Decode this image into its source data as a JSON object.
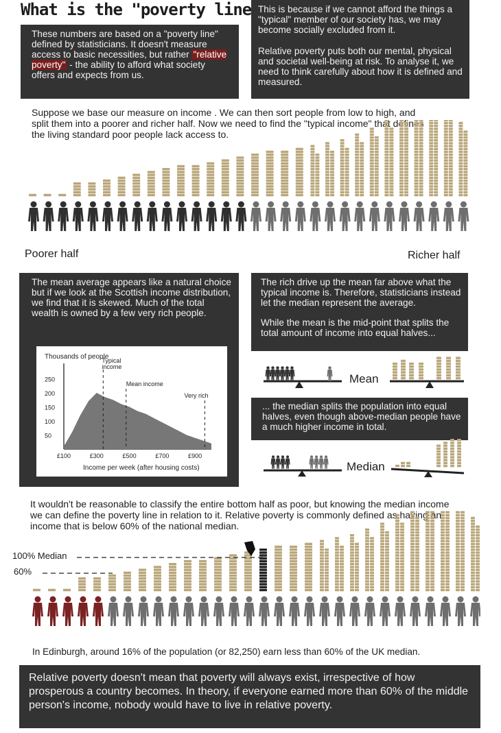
{
  "title": "What is the \"poverty line\"?",
  "intro_left": {
    "before": "These numbers are based on a \"poverty line\" defined by statisticians. It doesn't measure access to basic necessities, but rather ",
    "highlight": "\"relative poverty\"",
    "after": " - the ability to afford what society offers and expects from us."
  },
  "intro_right": {
    "p1": "This is because if we cannot afford the things a \"typical\" member of our society has, we may become socially excluded from it.",
    "p2": "Relative poverty puts both our mental, physical and societal well-being at risk. To analyse it, we need to think carefully about how it is defined and measured."
  },
  "income_intro": "Suppose we base our measure on income . We can then sort people from low to high, and split them into a poorer and richer half. Now we need to find the \"typical income\" that defines the living standard poor people lack access to.",
  "poorer_half": "Poorer half",
  "richer_half": "Richer half",
  "mean_box": "The mean average appears like a natural choice but if we look at the Scottish income distribution, we find that it is skewed. Much of the total wealth is owned by a few very rich people.",
  "rich_box": {
    "p1": "The rich drive up the mean far above what the typical income is. Therefore, statisticians instead let the median represent the average.",
    "p2": "While the mean is the mid-point that splits the total amount of income into equal halves..."
  },
  "median_box": "... the median splits the population into equal halves, even though above-median people have a much higher income in total.",
  "mean_label": "Mean",
  "median_label": "Median",
  "chart_data": {
    "type": "area",
    "ylabel": "Thousands of people",
    "xlabel": "Income per week (after housing costs)",
    "y_ticks": [
      "250",
      "200",
      "150",
      "100",
      "50"
    ],
    "x_ticks": [
      "£100",
      "£300",
      "£500",
      "£700",
      "£900"
    ],
    "annotations": [
      "Typical income",
      "Mean income",
      "Very rich"
    ],
    "x": [
      100,
      150,
      200,
      250,
      300,
      350,
      400,
      450,
      500,
      550,
      600,
      650,
      700,
      750,
      800,
      850,
      900,
      950,
      1000
    ],
    "values": [
      10,
      60,
      120,
      170,
      200,
      185,
      175,
      160,
      150,
      135,
      125,
      110,
      95,
      80,
      65,
      50,
      40,
      30,
      20
    ],
    "ylim": [
      0,
      280
    ]
  },
  "median_text": "It wouldn't be reasonable to classify the entire bottom half as poor, but knowing the median income we can define the poverty line in relation to it. Relative poverty is commonly defined as having an income that is below 60% of the national median.",
  "median_100": "100% Median",
  "median_60": "60%",
  "edinburgh": "In Edinburgh, around 16% of the population (or 82,250) earn less than 60% of the UK median.",
  "conclusion": "Relative poverty doesn't mean that poverty will always exist, irrespective of how prosperous a country becomes. In theory, if everyone earned more than 60% of the middle person's income, nobody would have to live in relative poverty.",
  "colors": {
    "dark": "#333333",
    "poor": "#7a2222",
    "grey": "#6e6e6e",
    "coin": "#b9a67a",
    "area": "#777777"
  }
}
